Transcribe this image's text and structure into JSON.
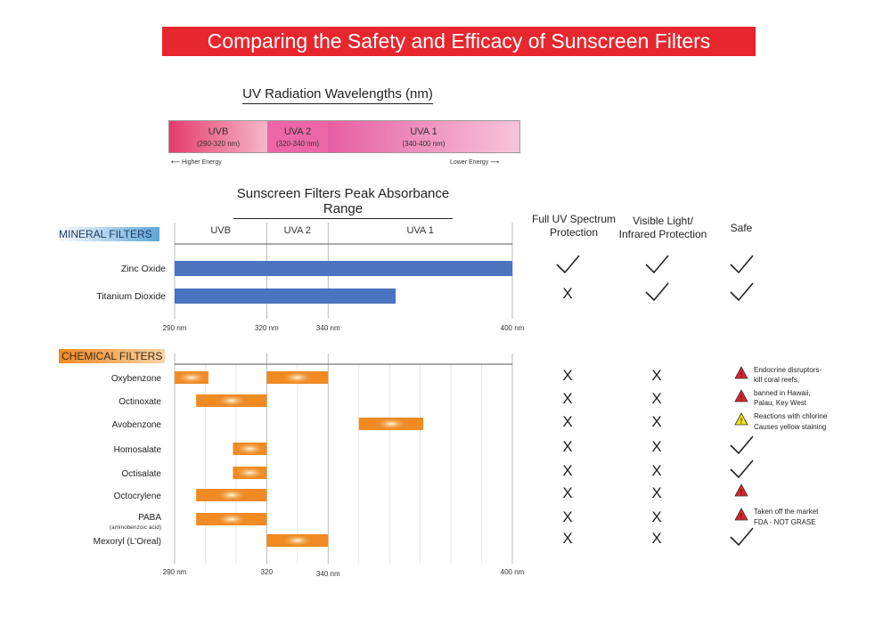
{
  "title": "Comparing the Safety and Efficacy of Sunscreen Filters",
  "uv_section": {
    "title": "UV Radiation Wavelengths (nm)",
    "segments": [
      {
        "label": "UVB",
        "range": "(290-320 nm)"
      },
      {
        "label": "UVA 2",
        "range": "(320-340 nm)"
      },
      {
        "label": "UVA 1",
        "range": "(340-400 nm)"
      }
    ],
    "higher_energy": "Higher Energy",
    "lower_energy": "Lower Energy"
  },
  "columns": {
    "full_uv": "Full UV Spectrum Protection",
    "visible_ir": "Visible Light/ Infrared Protection",
    "safe": "Safe"
  },
  "colors": {
    "banner": "#e8262d",
    "mineral_bar": "#4a73c0",
    "chemical_bar": "#f08a22",
    "warning_red": "#e0242c",
    "warning_yellow": "#f4e11c"
  },
  "chart_data": {
    "type": "bar",
    "title": "Sunscreen Filters Peak Absorbance Range",
    "xlabel": "nm",
    "band_labels": [
      "UVB",
      "UVA 2",
      "UVA 1"
    ],
    "mineral": {
      "section_label": "MINERAL FILTERS",
      "tick_labels": [
        "290 nm",
        "320 nm",
        "340 nm",
        "400 nm"
      ],
      "xlim": [
        290,
        400
      ],
      "items": [
        {
          "name": "Zinc Oxide",
          "start": 290,
          "end": 400,
          "full_uv": "check",
          "visible_ir": "check",
          "safe": "check"
        },
        {
          "name": "Titanium Dioxide",
          "start": 290,
          "end": 362,
          "full_uv": "X",
          "visible_ir": "check",
          "safe": "check"
        }
      ]
    },
    "chemical": {
      "section_label": "CHEMICAL FILTERS",
      "tick_labels": [
        "290 nm",
        "320",
        "340 nm",
        "400 nm"
      ],
      "xlim": [
        290,
        400
      ],
      "items": [
        {
          "name": "Oxybenzone",
          "sub": "",
          "ranges": [
            [
              290,
              301
            ],
            [
              320,
              340
            ]
          ],
          "full_uv": "X",
          "visible_ir": "X",
          "safe": "red"
        },
        {
          "name": "Octinoxate",
          "sub": "",
          "ranges": [
            [
              297,
              320
            ]
          ],
          "full_uv": "X",
          "visible_ir": "X",
          "safe": "red"
        },
        {
          "name": "Avobenzone",
          "sub": "",
          "ranges": [
            [
              350,
              371
            ]
          ],
          "full_uv": "X",
          "visible_ir": "X",
          "safe": "yellow"
        },
        {
          "name": "Homosalate",
          "sub": "",
          "ranges": [
            [
              309,
              320
            ]
          ],
          "full_uv": "X",
          "visible_ir": "X",
          "safe": "check"
        },
        {
          "name": "Octisalate",
          "sub": "",
          "ranges": [
            [
              309,
              320
            ]
          ],
          "full_uv": "X",
          "visible_ir": "X",
          "safe": "check"
        },
        {
          "name": "Octocrylene",
          "sub": "",
          "ranges": [
            [
              297,
              320
            ]
          ],
          "full_uv": "X",
          "visible_ir": "X",
          "safe": "red"
        },
        {
          "name": "PABA",
          "sub": "(aminobenzoic acid)",
          "ranges": [
            [
              297,
              320
            ]
          ],
          "full_uv": "X",
          "visible_ir": "X",
          "safe": "red"
        },
        {
          "name": "Mexoryl (L'Oreal)",
          "sub": "",
          "ranges": [
            [
              320,
              340
            ]
          ],
          "full_uv": "X",
          "visible_ir": "X",
          "safe": "check"
        }
      ]
    }
  },
  "notes": {
    "oxybenzone_1": "Endocrine disruptors-",
    "oxybenzone_2": "kill coral reefs,",
    "octinoxate_1": "banned in Hawaii,",
    "octinoxate_2": "Palau, Key West",
    "avobenzone_1": "Reactions with chlorine",
    "avobenzone_2": "Causes yellow staining",
    "paba_1": "Taken off the market",
    "paba_2": "FDA - NOT GRASE"
  }
}
